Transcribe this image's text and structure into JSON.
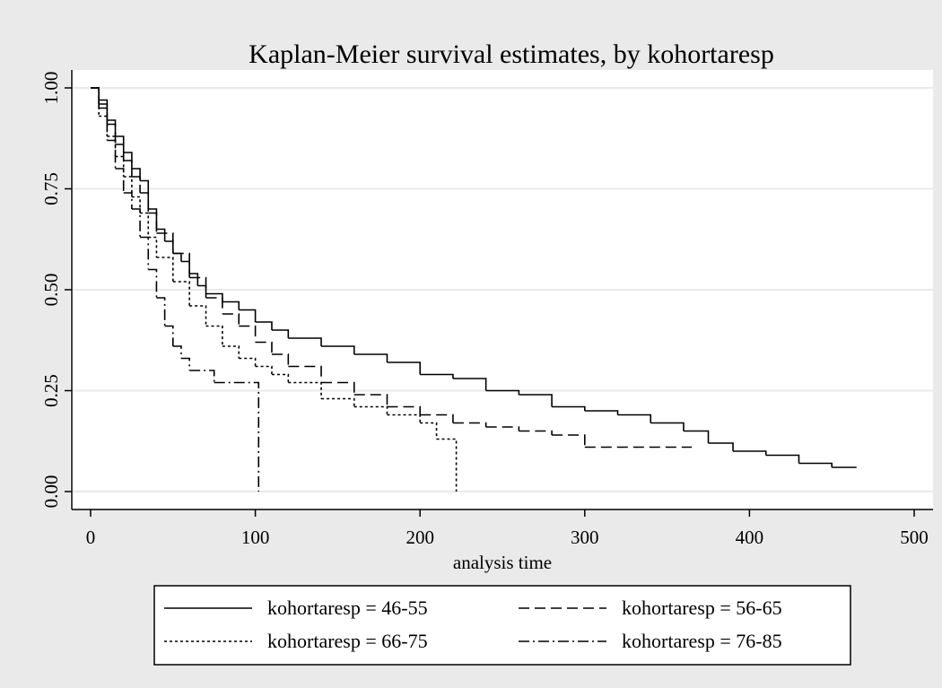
{
  "chart_data": {
    "type": "step",
    "title": "Kaplan-Meier survival estimates, by kohortaresp",
    "x_label": "analysis time",
    "xlim": [
      0,
      500
    ],
    "xticks": [
      0,
      100,
      200,
      300,
      400,
      500
    ],
    "ylim": [
      0,
      1
    ],
    "yticks": [
      {
        "value": 0,
        "label": "0.00"
      },
      {
        "value": 0.25,
        "label": "0.25"
      },
      {
        "value": 0.5,
        "label": "0.50"
      },
      {
        "value": 0.75,
        "label": "0.75"
      },
      {
        "value": 1,
        "label": "1.00"
      }
    ],
    "grid": true,
    "series": [
      {
        "name": "kohortaresp = 46-55",
        "color": "#000000",
        "dash": "none",
        "x": [
          0,
          5,
          10,
          15,
          20,
          25,
          30,
          35,
          40,
          45,
          50,
          55,
          60,
          65,
          70,
          80,
          90,
          100,
          110,
          120,
          140,
          160,
          180,
          200,
          220,
          240,
          260,
          280,
          300,
          320,
          340,
          360,
          375,
          390,
          410,
          430,
          450,
          465
        ],
        "values": [
          1,
          0.97,
          0.92,
          0.88,
          0.84,
          0.8,
          0.77,
          0.7,
          0.65,
          0.62,
          0.59,
          0.57,
          0.54,
          0.51,
          0.49,
          0.47,
          0.45,
          0.42,
          0.4,
          0.38,
          0.36,
          0.34,
          0.32,
          0.29,
          0.28,
          0.25,
          0.24,
          0.21,
          0.2,
          0.19,
          0.17,
          0.15,
          0.12,
          0.1,
          0.09,
          0.07,
          0.06,
          0.06
        ]
      },
      {
        "name": "kohortaresp = 56-65",
        "color": "#000000",
        "dash": "12,6",
        "x": [
          0,
          5,
          10,
          15,
          20,
          25,
          30,
          35,
          40,
          50,
          60,
          70,
          80,
          90,
          100,
          110,
          120,
          140,
          160,
          180,
          200,
          220,
          240,
          260,
          280,
          300,
          365
        ],
        "values": [
          1,
          0.96,
          0.91,
          0.86,
          0.82,
          0.78,
          0.74,
          0.69,
          0.64,
          0.59,
          0.53,
          0.48,
          0.44,
          0.41,
          0.37,
          0.34,
          0.31,
          0.27,
          0.24,
          0.21,
          0.19,
          0.17,
          0.16,
          0.15,
          0.14,
          0.11,
          0.11
        ]
      },
      {
        "name": "kohortaresp = 66-75",
        "color": "#000000",
        "dash": "3,3",
        "x": [
          0,
          5,
          10,
          15,
          20,
          25,
          30,
          35,
          40,
          50,
          60,
          70,
          80,
          90,
          100,
          110,
          120,
          140,
          160,
          180,
          200,
          210,
          222
        ],
        "values": [
          1,
          0.93,
          0.88,
          0.83,
          0.78,
          0.73,
          0.69,
          0.63,
          0.58,
          0.52,
          0.46,
          0.41,
          0.36,
          0.33,
          0.31,
          0.29,
          0.27,
          0.23,
          0.21,
          0.19,
          0.17,
          0.13,
          0
        ]
      },
      {
        "name": "kohortaresp = 76-85",
        "color": "#000000",
        "dash": "12,4,2,4",
        "x": [
          0,
          5,
          10,
          15,
          20,
          25,
          30,
          35,
          40,
          45,
          50,
          55,
          60,
          75,
          102
        ],
        "values": [
          1,
          0.95,
          0.87,
          0.8,
          0.74,
          0.7,
          0.63,
          0.55,
          0.48,
          0.41,
          0.36,
          0.33,
          0.3,
          0.27,
          0
        ]
      }
    ]
  }
}
